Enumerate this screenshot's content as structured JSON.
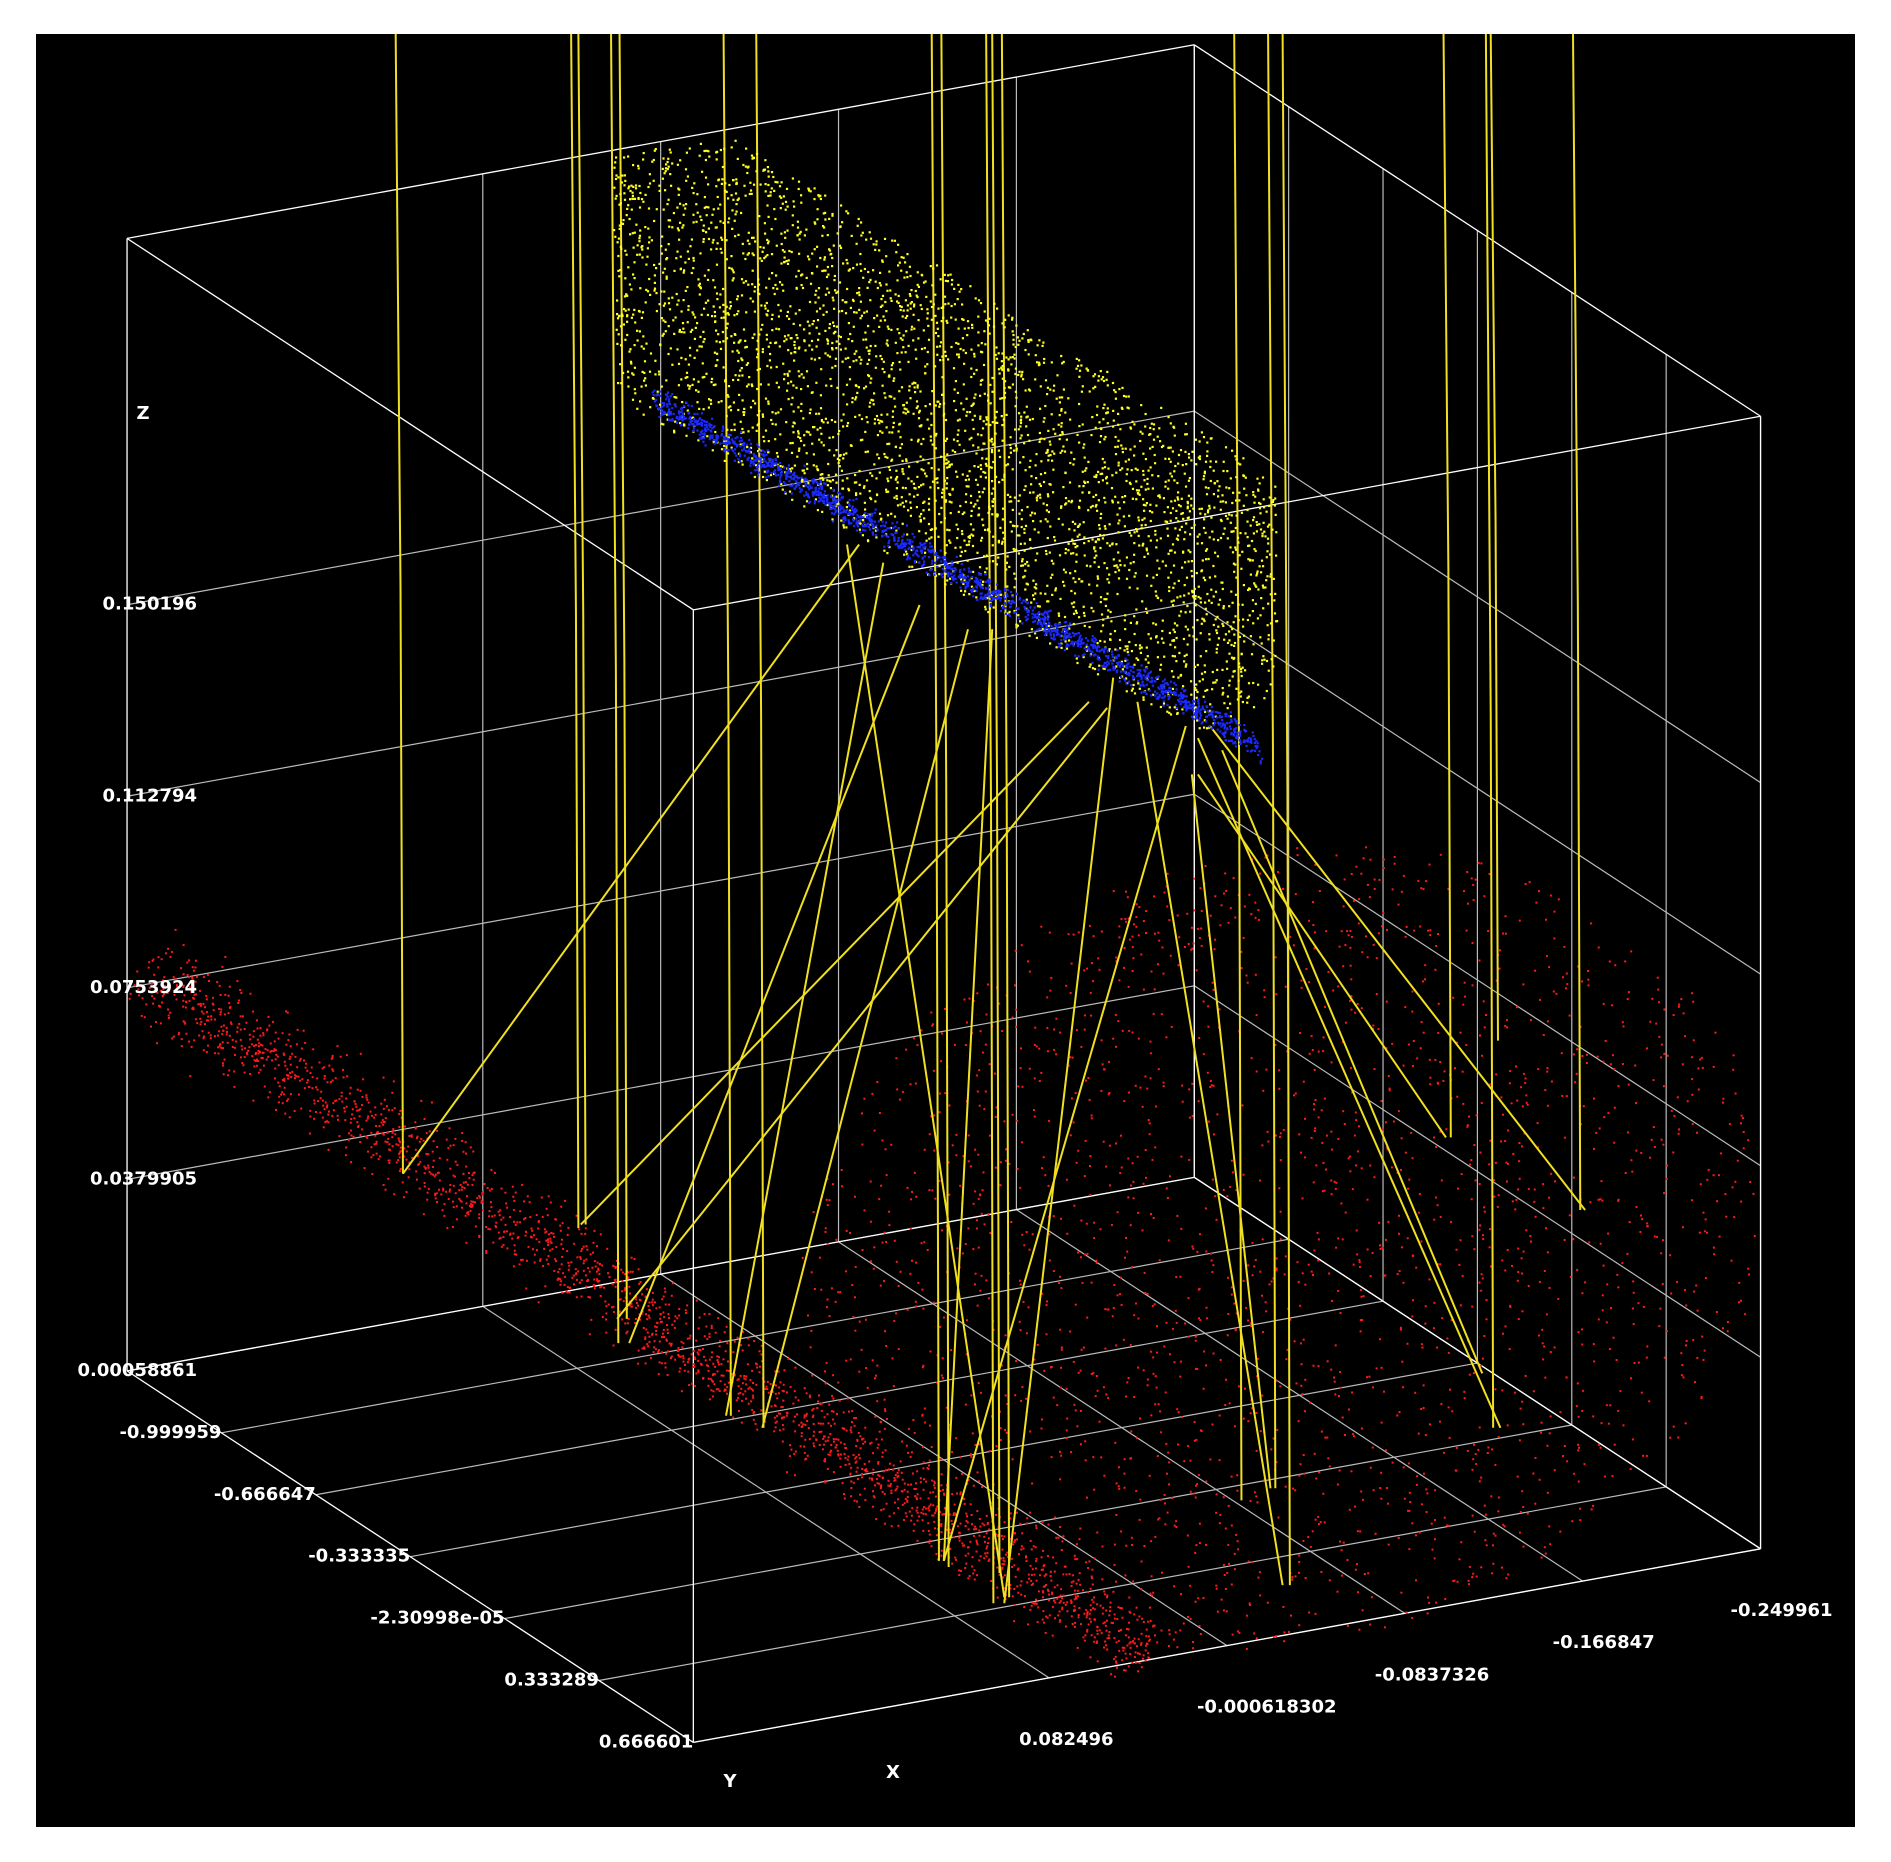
{
  "chart_data": {
    "type": "scatter3d",
    "xlabel": "X",
    "ylabel": "Y",
    "zlabel": "Z",
    "xlim": [
      0.248723,
      -0.249961
    ],
    "xticks": [
      0.082496,
      -0.000618302,
      -0.0837326,
      -0.166847,
      -0.249961
    ],
    "ylim": [
      -1.333271,
      0.666601
    ],
    "yticks": [
      -0.999959,
      -0.666647,
      -0.333335,
      {
        "value": -2.30998e-05,
        "label": "-2.30998e-05"
      },
      0.333289,
      0.666601
    ],
    "zlim": [
      0.00058861,
      0.22173
    ],
    "zticks": [
      0.00058861,
      0.0379905,
      0.0753924,
      0.112794,
      0.150196
    ],
    "grid": true
  }
}
